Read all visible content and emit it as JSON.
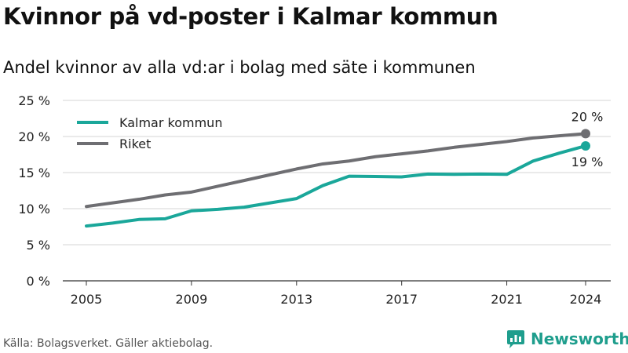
{
  "title": "Kvinnor på vd-poster i Kalmar kommun",
  "subtitle": "Andel kvinnor av alla vd:ar i bolag med säte i kommunen",
  "source": "Källa: Bolagsverket. Gäller aktiebolag.",
  "brand": {
    "name": "Newsworthy",
    "icon": "newsworthy-logo-icon"
  },
  "colors": {
    "kalmar": "#1aa79a",
    "riket": "#6e6e72",
    "grid": "#d4d4d4"
  },
  "chart_data": {
    "type": "line",
    "x": [
      2005,
      2006,
      2007,
      2008,
      2009,
      2010,
      2011,
      2012,
      2013,
      2014,
      2015,
      2016,
      2017,
      2018,
      2019,
      2020,
      2021,
      2022,
      2023,
      2024
    ],
    "series": [
      {
        "name": "Kalmar kommun",
        "values": [
          7.6,
          8.0,
          8.5,
          8.6,
          9.7,
          9.9,
          10.2,
          10.8,
          11.4,
          13.2,
          14.5,
          14.45,
          14.4,
          14.8,
          14.75,
          14.8,
          14.75,
          16.6,
          17.7,
          18.7
        ],
        "end_label": "19 %"
      },
      {
        "name": "Riket",
        "values": [
          10.3,
          10.8,
          11.3,
          11.9,
          12.3,
          13.1,
          13.9,
          14.7,
          15.5,
          16.2,
          16.6,
          17.2,
          17.6,
          18.0,
          18.5,
          18.9,
          19.3,
          19.8,
          20.1,
          20.4
        ],
        "end_label": "20 %"
      }
    ],
    "xticks": [
      2005,
      2009,
      2013,
      2017,
      2021,
      2024
    ],
    "xtick_labels": [
      "2005",
      "2009",
      "2013",
      "2017",
      "2021",
      "2024"
    ],
    "yticks": [
      0,
      5,
      10,
      15,
      20,
      25
    ],
    "ytick_labels": [
      "0 %",
      "5 %",
      "10 %",
      "15 %",
      "20 %",
      "25 %"
    ],
    "xlim": [
      2004,
      2025
    ],
    "ylim": [
      0,
      25
    ],
    "grid": true,
    "legend": "top-left"
  }
}
